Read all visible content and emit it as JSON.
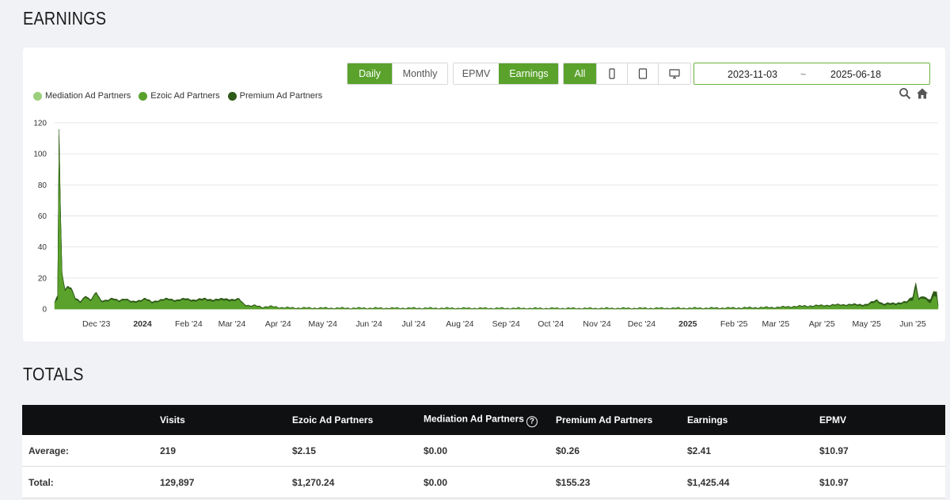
{
  "earnings_section": {
    "title": "EARNINGS"
  },
  "toolbar": {
    "period": {
      "daily": "Daily",
      "monthly": "Monthly"
    },
    "metric": {
      "epmv": "EPMV",
      "earnings": "Earnings"
    },
    "device": {
      "all": "All",
      "icons": [
        "mobile-phone-icon",
        "tablet-icon",
        "desktop-icon"
      ]
    },
    "date_range": {
      "start": "2023-11-03",
      "separator": "~",
      "end": "2025-06-18"
    },
    "tools": [
      "zoom-icon",
      "home-icon"
    ]
  },
  "legend": [
    {
      "label": "Mediation Ad Partners",
      "color": "#9bcf7c"
    },
    {
      "label": "Ezoic Ad Partners",
      "color": "#5aa22c"
    },
    {
      "label": "Premium Ad Partners",
      "color": "#2d5a16"
    }
  ],
  "chart_data": {
    "type": "area",
    "stacked": true,
    "x_tick_labels": [
      "Dec '23",
      "2024",
      "Feb '24",
      "Mar '24",
      "Apr '24",
      "May '24",
      "Jun '24",
      "Jul '24",
      "Aug '24",
      "Sep '24",
      "Oct '24",
      "Nov '24",
      "Dec '24",
      "2025",
      "Feb '25",
      "Mar '25",
      "Apr '25",
      "May '25",
      "Jun '25"
    ],
    "bold_ticks": [
      "2024",
      "2025"
    ],
    "y_ticks": [
      0,
      20,
      40,
      60,
      80,
      100,
      120
    ],
    "ylim": [
      0,
      120
    ],
    "xlim": [
      "2023-11-03",
      "2025-06-18"
    ],
    "grid": true,
    "legend_position": "top-left",
    "series": [
      {
        "name": "Mediation Ad Partners",
        "color": "#9bcf7c",
        "points": [
          [
            "2023-11-03",
            0
          ],
          [
            "2025-06-18",
            0
          ]
        ]
      },
      {
        "name": "Ezoic Ad Partners",
        "color": "#5aa22c",
        "points": [
          [
            "2023-11-03",
            4
          ],
          [
            "2023-11-05",
            6
          ],
          [
            "2023-11-06",
            112
          ],
          [
            "2023-11-07",
            60
          ],
          [
            "2023-11-08",
            22
          ],
          [
            "2023-11-10",
            12
          ],
          [
            "2023-11-12",
            14
          ],
          [
            "2023-11-14",
            13
          ],
          [
            "2023-11-17",
            6
          ],
          [
            "2023-11-20",
            4
          ],
          [
            "2023-11-24",
            8
          ],
          [
            "2023-11-27",
            5
          ],
          [
            "2023-12-01",
            10
          ],
          [
            "2023-12-04",
            5
          ],
          [
            "2023-12-08",
            5
          ],
          [
            "2023-12-12",
            6
          ],
          [
            "2023-12-16",
            5
          ],
          [
            "2023-12-20",
            6
          ],
          [
            "2023-12-25",
            4
          ],
          [
            "2023-12-30",
            5
          ],
          [
            "2024-01-03",
            6
          ],
          [
            "2024-01-07",
            4
          ],
          [
            "2024-01-12",
            5
          ],
          [
            "2024-01-18",
            6
          ],
          [
            "2024-01-24",
            5
          ],
          [
            "2024-01-30",
            6
          ],
          [
            "2024-02-05",
            5
          ],
          [
            "2024-02-12",
            6
          ],
          [
            "2024-02-18",
            5
          ],
          [
            "2024-02-25",
            6
          ],
          [
            "2024-03-02",
            5
          ],
          [
            "2024-03-06",
            6
          ],
          [
            "2024-03-09",
            3
          ],
          [
            "2024-03-13",
            1.5
          ],
          [
            "2024-03-17",
            2
          ],
          [
            "2024-03-22",
            1
          ],
          [
            "2024-03-28",
            1.5
          ],
          [
            "2024-04-04",
            0.8
          ],
          [
            "2024-04-15",
            0.6
          ],
          [
            "2024-05-15",
            0.5
          ],
          [
            "2024-07-01",
            0.5
          ],
          [
            "2024-09-01",
            0.45
          ],
          [
            "2024-11-01",
            0.4
          ],
          [
            "2025-01-01",
            0.45
          ],
          [
            "2025-02-01",
            0.55
          ],
          [
            "2025-03-01",
            0.9
          ],
          [
            "2025-03-15",
            1.5
          ],
          [
            "2025-04-01",
            2
          ],
          [
            "2025-04-15",
            2.5
          ],
          [
            "2025-05-01",
            2.2
          ],
          [
            "2025-05-08",
            5
          ],
          [
            "2025-05-12",
            2.5
          ],
          [
            "2025-05-20",
            3
          ],
          [
            "2025-05-28",
            4
          ],
          [
            "2025-06-01",
            6
          ],
          [
            "2025-06-03",
            14
          ],
          [
            "2025-06-05",
            6
          ],
          [
            "2025-06-08",
            7
          ],
          [
            "2025-06-11",
            5
          ],
          [
            "2025-06-13",
            4
          ],
          [
            "2025-06-15",
            9
          ],
          [
            "2025-06-17",
            8
          ],
          [
            "2025-06-18",
            2
          ]
        ]
      },
      {
        "name": "Premium Ad Partners",
        "color": "#2d5a16",
        "points": [
          [
            "2023-11-03",
            0.3
          ],
          [
            "2023-11-06",
            4
          ],
          [
            "2023-11-08",
            1
          ],
          [
            "2023-12-01",
            0.8
          ],
          [
            "2024-01-15",
            0.8
          ],
          [
            "2024-03-01",
            1
          ],
          [
            "2024-03-10",
            0.5
          ],
          [
            "2024-04-01",
            0.2
          ],
          [
            "2024-07-01",
            0.15
          ],
          [
            "2024-10-01",
            0.1
          ],
          [
            "2025-01-01",
            0.2
          ],
          [
            "2025-03-01",
            0.3
          ],
          [
            "2025-04-15",
            0.5
          ],
          [
            "2025-05-08",
            1
          ],
          [
            "2025-05-28",
            0.8
          ],
          [
            "2025-06-03",
            3
          ],
          [
            "2025-06-05",
            1
          ],
          [
            "2025-06-10",
            1.2
          ],
          [
            "2025-06-15",
            3
          ],
          [
            "2025-06-17",
            3
          ],
          [
            "2025-06-18",
            0.5
          ]
        ]
      }
    ]
  },
  "totals_section": {
    "title": "TOTALS",
    "columns": [
      "Visits",
      "Ezoic Ad Partners",
      "Mediation Ad Partners",
      "Premium Ad Partners",
      "Earnings",
      "EPMV"
    ],
    "help_icon": "?",
    "rows": [
      {
        "label": "Average:",
        "values": [
          "219",
          "$2.15",
          "$0.00",
          "$0.26",
          "$2.41",
          "$10.97"
        ]
      },
      {
        "label": "Total:",
        "values": [
          "129,897",
          "$1,270.24",
          "$0.00",
          "$155.23",
          "$1,425.44",
          "$10.97"
        ]
      }
    ]
  }
}
